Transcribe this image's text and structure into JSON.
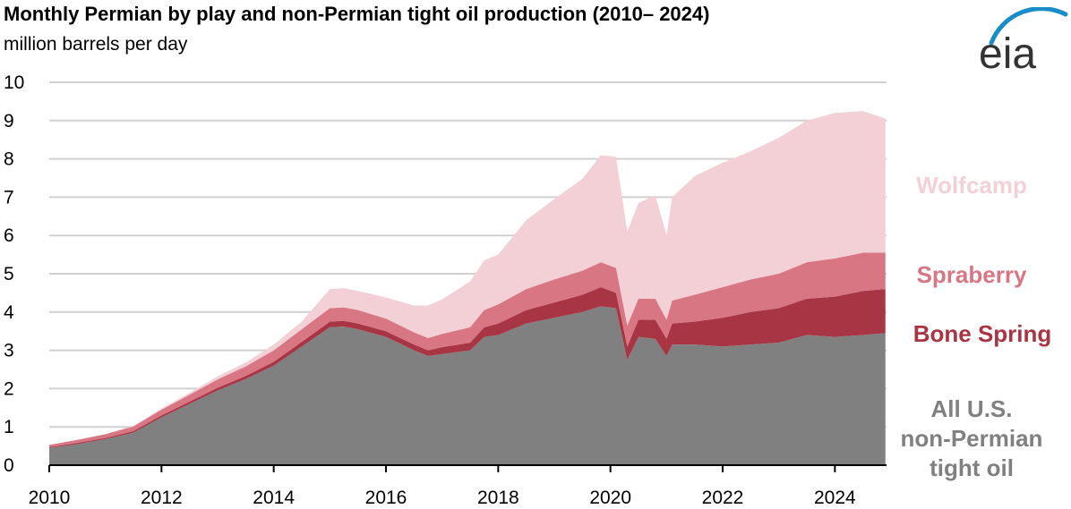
{
  "title": "Monthly Permian by play and non-Permian tight oil production (2010– 2024)",
  "subtitle": "million barrels per day",
  "logo": {
    "text": "eia",
    "icon": "eia-logo-icon",
    "arc_color": "#1a8dc8",
    "text_color": "#333333"
  },
  "chart_data": {
    "type": "area",
    "stacked": true,
    "title": "Monthly Permian by play and non-Permian tight oil production (2010– 2024)",
    "ylabel": "million barrels per day",
    "xlabel": "",
    "xlim": [
      2010,
      2024.92
    ],
    "ylim": [
      0,
      10
    ],
    "grid": true,
    "y_ticks": [
      "0",
      "1",
      "2",
      "3",
      "4",
      "5",
      "6",
      "7",
      "8",
      "9",
      "10"
    ],
    "x_ticks": [
      "2010",
      "2012",
      "2014",
      "2016",
      "2018",
      "2020",
      "2022",
      "2024"
    ],
    "x": [
      2010,
      2010.5,
      2011,
      2011.5,
      2012,
      2012.5,
      2013,
      2013.5,
      2014,
      2014.5,
      2015,
      2015.25,
      2015.5,
      2016,
      2016.5,
      2016.75,
      2017,
      2017.5,
      2017.75,
      2018,
      2018.5,
      2019,
      2019.5,
      2019.83,
      2020.1,
      2020.3,
      2020.5,
      2020.8,
      2021,
      2021.1,
      2021.5,
      2022,
      2022.5,
      2023,
      2023.5,
      2024,
      2024.5,
      2024.9
    ],
    "series": [
      {
        "name": "All U.S. non-Permian tight oil",
        "color": "#808080",
        "label_lines": [
          "All U.S.",
          "non-Permian",
          "tight oil"
        ],
        "values": [
          0.45,
          0.55,
          0.68,
          0.85,
          1.25,
          1.6,
          1.95,
          2.25,
          2.6,
          3.1,
          3.6,
          3.62,
          3.55,
          3.35,
          3.0,
          2.85,
          2.9,
          3.0,
          3.35,
          3.4,
          3.7,
          3.85,
          4.0,
          4.15,
          4.1,
          2.75,
          3.35,
          3.3,
          2.85,
          3.15,
          3.15,
          3.1,
          3.15,
          3.2,
          3.4,
          3.35,
          3.4,
          3.45
        ]
      },
      {
        "name": "Bone Spring",
        "color": "#a83544",
        "label_lines": [
          "Bone Spring"
        ],
        "values": [
          0.02,
          0.03,
          0.03,
          0.04,
          0.05,
          0.06,
          0.07,
          0.08,
          0.1,
          0.12,
          0.15,
          0.15,
          0.15,
          0.15,
          0.15,
          0.15,
          0.18,
          0.2,
          0.25,
          0.3,
          0.35,
          0.4,
          0.45,
          0.5,
          0.4,
          0.35,
          0.45,
          0.5,
          0.45,
          0.55,
          0.6,
          0.75,
          0.85,
          0.9,
          0.95,
          1.05,
          1.15,
          1.15
        ]
      },
      {
        "name": "Spraberry",
        "color": "#d87684",
        "label_lines": [
          "Spraberry"
        ],
        "values": [
          0.06,
          0.08,
          0.1,
          0.12,
          0.15,
          0.18,
          0.22,
          0.25,
          0.3,
          0.33,
          0.35,
          0.35,
          0.35,
          0.33,
          0.32,
          0.32,
          0.35,
          0.4,
          0.45,
          0.5,
          0.55,
          0.6,
          0.63,
          0.65,
          0.65,
          0.55,
          0.55,
          0.55,
          0.5,
          0.6,
          0.7,
          0.8,
          0.85,
          0.9,
          0.95,
          1.0,
          1.0,
          0.95
        ]
      },
      {
        "name": "Wolfcamp",
        "color": "#f2d0d6",
        "label_lines": [
          "Wolfcamp"
        ],
        "values": [
          0.0,
          0.0,
          0.0,
          0.02,
          0.03,
          0.05,
          0.08,
          0.1,
          0.15,
          0.2,
          0.5,
          0.5,
          0.5,
          0.55,
          0.7,
          0.85,
          0.9,
          1.2,
          1.3,
          1.3,
          1.8,
          2.1,
          2.4,
          2.8,
          2.9,
          2.45,
          2.5,
          2.7,
          2.2,
          2.7,
          3.1,
          3.25,
          3.35,
          3.55,
          3.7,
          3.8,
          3.7,
          3.5
        ]
      }
    ]
  }
}
